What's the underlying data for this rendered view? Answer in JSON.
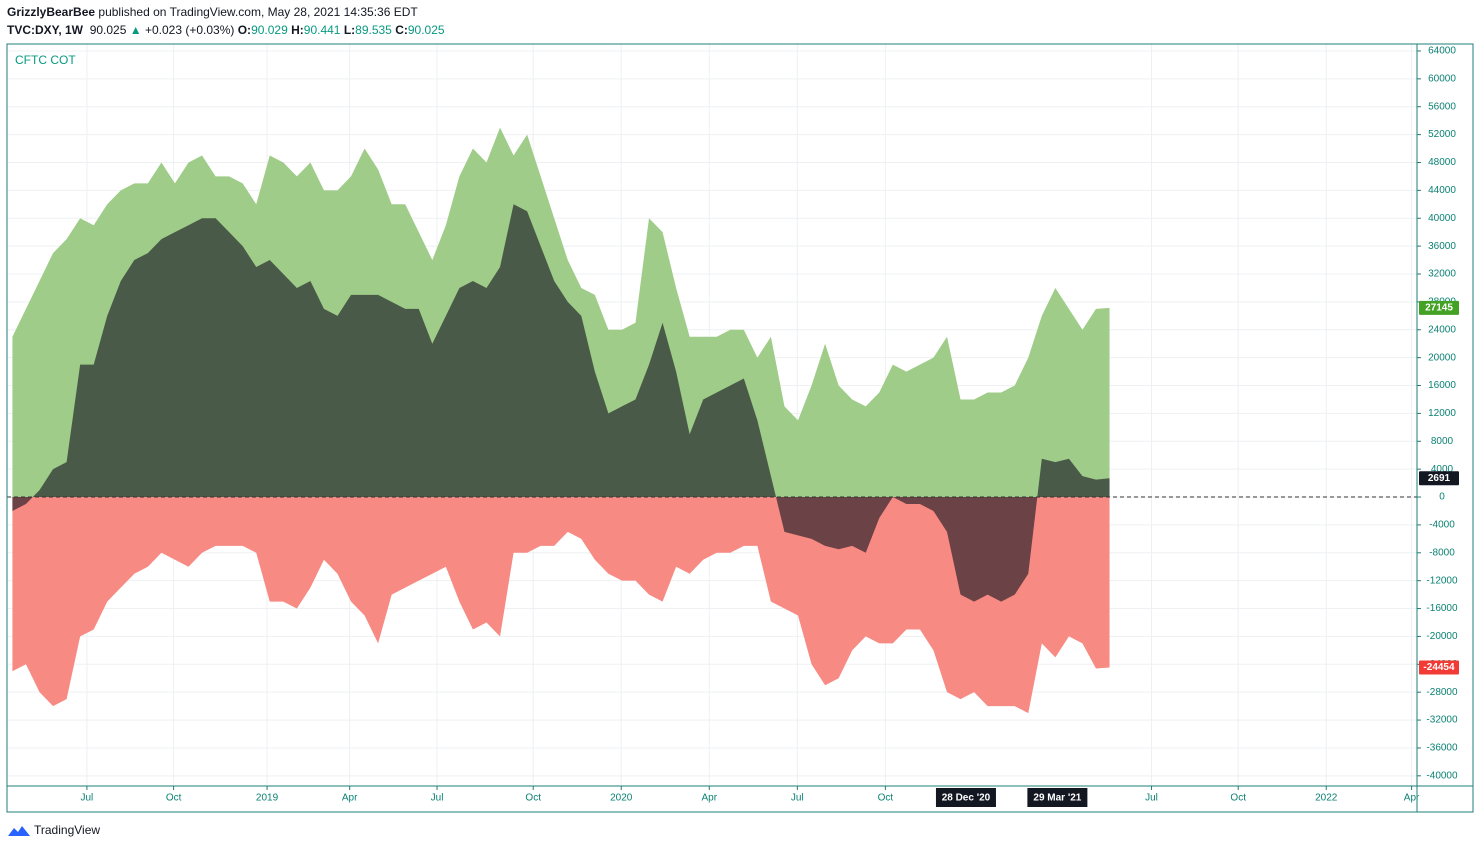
{
  "header": {
    "author": "GrizzlyBearBee",
    "published": "published on TradingView.com, May 28, 2021 14:35:36 EDT",
    "symbol": "TVC:DXY, 1W",
    "price": "90.025",
    "arrow": "▲",
    "change": "+0.023 (+0.03%)",
    "ohlc": [
      {
        "label": "O:",
        "value": "90.029"
      },
      {
        "label": "H:",
        "value": "90.441"
      },
      {
        "label": "L:",
        "value": "89.535"
      },
      {
        "label": "C:",
        "value": "90.025"
      }
    ]
  },
  "footer": {
    "brand": "TradingView"
  },
  "chart_data": {
    "type": "area",
    "title": "CFTC COT",
    "x": [
      15,
      17,
      19,
      21,
      23,
      25,
      27,
      29,
      31,
      33,
      35,
      37,
      39,
      41,
      43,
      45,
      47,
      49,
      51,
      53,
      55,
      57,
      59,
      61,
      63,
      65,
      67,
      69,
      71,
      73,
      75,
      77,
      79,
      81,
      83,
      85,
      87,
      89,
      91,
      93,
      95,
      97,
      99,
      101,
      103,
      105,
      107,
      109,
      111,
      113,
      115,
      117,
      119,
      121,
      123,
      125,
      127,
      129,
      131,
      133,
      135,
      137,
      139,
      141,
      143,
      145,
      147,
      149,
      151,
      153,
      155,
      157,
      159,
      161,
      163,
      165,
      167,
      169,
      171,
      173,
      175,
      177
    ],
    "series": [
      {
        "color": "#9fcc88",
        "badge_color": "#43a124",
        "values": [
          23000,
          27000,
          31000,
          35000,
          37000,
          40000,
          39000,
          42000,
          44000,
          45000,
          45000,
          48000,
          45000,
          48000,
          49000,
          46000,
          46000,
          45000,
          42000,
          49000,
          48000,
          46000,
          48000,
          44000,
          44000,
          46000,
          50000,
          47000,
          42000,
          42000,
          38000,
          34000,
          39000,
          46000,
          50000,
          48000,
          53000,
          49000,
          52000,
          46000,
          40000,
          34000,
          30000,
          29000,
          24000,
          24000,
          25000,
          40000,
          38000,
          30000,
          23000,
          23000,
          23000,
          24000,
          24000,
          20000,
          23000,
          13000,
          11000,
          16000,
          22000,
          16000,
          14000,
          13000,
          15000,
          19000,
          18000,
          19000,
          20000,
          23000,
          14000,
          14000,
          15000,
          15000,
          16000,
          20000,
          26000,
          30000,
          27000,
          24000,
          27000,
          27145
        ]
      },
      {
        "color": "#f78a83",
        "badge_color": "#f23b35",
        "values": [
          -25000,
          -24000,
          -28000,
          -30000,
          -29000,
          -20000,
          -19000,
          -15000,
          -13000,
          -11000,
          -10000,
          -8000,
          -9000,
          -10000,
          -8000,
          -7000,
          -7000,
          -7000,
          -8000,
          -15000,
          -15000,
          -16000,
          -13000,
          -9000,
          -11000,
          -15000,
          -17000,
          -21000,
          -14000,
          -13000,
          -12000,
          -11000,
          -10000,
          -15000,
          -19000,
          -18000,
          -20000,
          -8000,
          -8000,
          -7000,
          -7000,
          -5000,
          -6000,
          -9000,
          -11000,
          -12000,
          -12000,
          -14000,
          -15000,
          -10000,
          -11000,
          -9000,
          -8000,
          -8000,
          -7000,
          -7000,
          -15000,
          -16000,
          -17000,
          -24000,
          -27000,
          -26000,
          -22000,
          -20000,
          -21000,
          -21000,
          -19000,
          -19000,
          -22000,
          -28000,
          -29000,
          -28000,
          -30000,
          -30000,
          -30000,
          -31000,
          -21000,
          -23000,
          -20000,
          -21000,
          -24600,
          -24454
        ]
      },
      {
        "color": "#4a5a48",
        "negative_color": "#6b4246",
        "badge_color": "#131722",
        "values": [
          -2000,
          -1000,
          1000,
          4000,
          5000,
          19000,
          19000,
          26000,
          31000,
          34000,
          35000,
          37000,
          38000,
          39000,
          40000,
          40000,
          38000,
          36000,
          33000,
          34000,
          32000,
          30000,
          31000,
          27000,
          26000,
          29000,
          29000,
          29000,
          28000,
          27000,
          27000,
          22000,
          26000,
          30000,
          31000,
          30000,
          33000,
          42000,
          41000,
          36000,
          31000,
          28000,
          26000,
          18000,
          12000,
          13000,
          14000,
          19000,
          25000,
          18000,
          9000,
          14000,
          15000,
          16000,
          17000,
          11000,
          3000,
          -5000,
          -5500,
          -6000,
          -7000,
          -7500,
          -7000,
          -8000,
          -3000,
          0,
          -1000,
          -1000,
          -2000,
          -5000,
          -14000,
          -15000,
          -14000,
          -15000,
          -14000,
          -11000,
          5500,
          5000,
          5500,
          3000,
          2500,
          2691
        ]
      }
    ],
    "xlim": [
      14.2,
      222.4
    ],
    "xticks": [
      {
        "value": 26.0,
        "label": "Jul"
      },
      {
        "value": 38.8,
        "label": "Oct"
      },
      {
        "value": 52.6,
        "label": "2019"
      },
      {
        "value": 64.8,
        "label": "Apr"
      },
      {
        "value": 77.7,
        "label": "Jul"
      },
      {
        "value": 91.9,
        "label": "Oct"
      },
      {
        "value": 104.9,
        "label": "2020"
      },
      {
        "value": 117.9,
        "label": "Apr"
      },
      {
        "value": 130.9,
        "label": "Jul"
      },
      {
        "value": 143.9,
        "label": "Oct"
      },
      {
        "value": 155.8,
        "label": "28 Dec '20",
        "highlight": true
      },
      {
        "value": 169.3,
        "label": "29 Mar '21",
        "highlight": true
      },
      {
        "value": 183.2,
        "label": "Jul"
      },
      {
        "value": 196.0,
        "label": "Oct"
      },
      {
        "value": 209.0,
        "label": "2022"
      },
      {
        "value": 221.6,
        "label": "Apr"
      }
    ],
    "ylim": [
      -41460,
      65000
    ],
    "yticks": [
      -40000,
      -36000,
      -32000,
      -28000,
      -24000,
      -20000,
      -16000,
      -12000,
      -8000,
      -4000,
      0,
      4000,
      8000,
      12000,
      16000,
      20000,
      24000,
      28000,
      32000,
      36000,
      40000,
      44000,
      48000,
      52000,
      56000,
      60000,
      64000
    ],
    "grid": true,
    "zero_line": true
  }
}
